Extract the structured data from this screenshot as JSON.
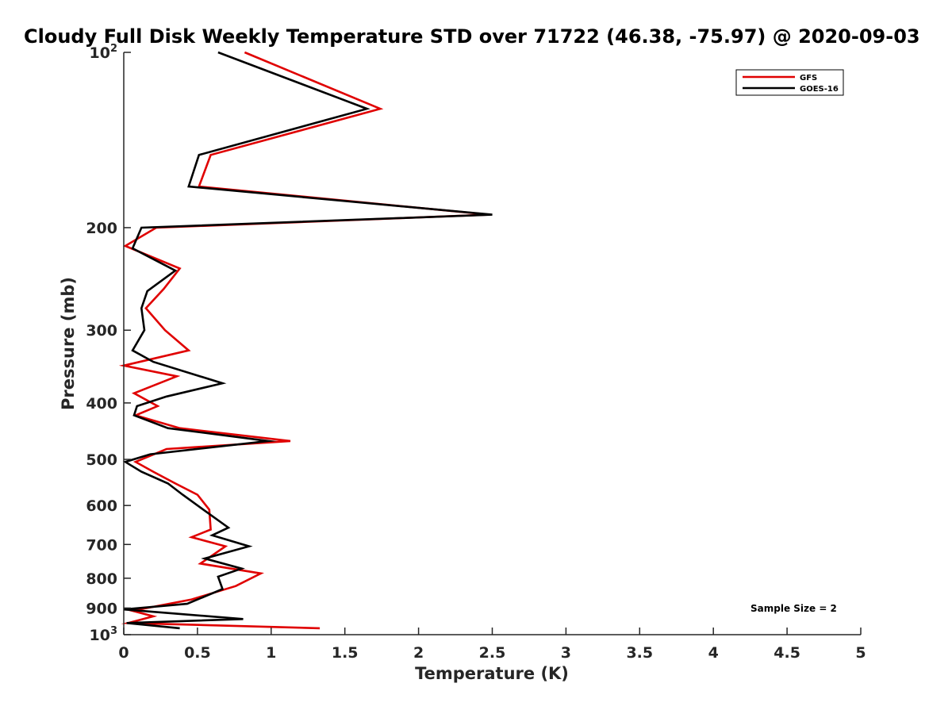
{
  "chart_data": {
    "type": "line",
    "title": "Cloudy Full Disk Weekly Temperature STD over 71722 (46.38, -75.97) @ 2020-09-03",
    "xlabel": "Temperature (K)",
    "ylabel": "Pressure (mb)",
    "xlim": [
      0,
      5
    ],
    "ylim": [
      100,
      1000
    ],
    "yscale": "log",
    "yreversed": true,
    "xticks": [
      "0",
      "0.5",
      "1",
      "1.5",
      "2",
      "2.5",
      "3",
      "3.5",
      "4",
      "4.5",
      "5"
    ],
    "xtick_values": [
      0,
      0.5,
      1,
      1.5,
      2,
      2.5,
      3,
      3.5,
      4,
      4.5,
      5
    ],
    "yticks": [
      {
        "value": 100,
        "label": "10",
        "sup": "2"
      },
      {
        "value": 200,
        "label": "200",
        "sup": ""
      },
      {
        "value": 300,
        "label": "300",
        "sup": ""
      },
      {
        "value": 400,
        "label": "400",
        "sup": ""
      },
      {
        "value": 500,
        "label": "500",
        "sup": ""
      },
      {
        "value": 600,
        "label": "600",
        "sup": ""
      },
      {
        "value": 700,
        "label": "700",
        "sup": ""
      },
      {
        "value": 800,
        "label": "800",
        "sup": ""
      },
      {
        "value": 900,
        "label": "900",
        "sup": ""
      },
      {
        "value": 1000,
        "label": "10",
        "sup": "3"
      }
    ],
    "legend_position": "top-right",
    "annotation": "Sample Size = 2",
    "series": [
      {
        "name": "GFS",
        "color": "#e00000",
        "points": [
          [
            0.82,
            100
          ],
          [
            1.74,
            125
          ],
          [
            0.59,
            150
          ],
          [
            0.51,
            170
          ],
          [
            2.48,
            190
          ],
          [
            0.22,
            200
          ],
          [
            0.01,
            215
          ],
          [
            0.38,
            235
          ],
          [
            0.27,
            255
          ],
          [
            0.15,
            275
          ],
          [
            0.28,
            300
          ],
          [
            0.44,
            325
          ],
          [
            0.0,
            345
          ],
          [
            0.36,
            360
          ],
          [
            0.07,
            385
          ],
          [
            0.23,
            405
          ],
          [
            0.08,
            420
          ],
          [
            0.38,
            442
          ],
          [
            1.13,
            465
          ],
          [
            0.29,
            480
          ],
          [
            0.08,
            505
          ],
          [
            0.2,
            525
          ],
          [
            0.35,
            550
          ],
          [
            0.5,
            575
          ],
          [
            0.58,
            610
          ],
          [
            0.59,
            660
          ],
          [
            0.46,
            680
          ],
          [
            0.69,
            705
          ],
          [
            0.52,
            755
          ],
          [
            0.93,
            785
          ],
          [
            0.76,
            825
          ],
          [
            0.46,
            870
          ],
          [
            0.06,
            910
          ],
          [
            0.2,
            930
          ],
          [
            0.03,
            955
          ],
          [
            1.33,
            975
          ]
        ]
      },
      {
        "name": "GOES-16",
        "color": "#000000",
        "points": [
          [
            0.64,
            100
          ],
          [
            1.65,
            125
          ],
          [
            0.51,
            150
          ],
          [
            0.44,
            170
          ],
          [
            2.5,
            190
          ],
          [
            0.12,
            200
          ],
          [
            0.06,
            217
          ],
          [
            0.35,
            237
          ],
          [
            0.16,
            257
          ],
          [
            0.12,
            275
          ],
          [
            0.14,
            300
          ],
          [
            0.06,
            325
          ],
          [
            0.2,
            340
          ],
          [
            0.67,
            370
          ],
          [
            0.29,
            390
          ],
          [
            0.09,
            405
          ],
          [
            0.07,
            420
          ],
          [
            0.3,
            442
          ],
          [
            0.98,
            465
          ],
          [
            0.18,
            490
          ],
          [
            0.01,
            505
          ],
          [
            0.12,
            525
          ],
          [
            0.3,
            550
          ],
          [
            0.4,
            575
          ],
          [
            0.54,
            610
          ],
          [
            0.71,
            655
          ],
          [
            0.6,
            675
          ],
          [
            0.85,
            705
          ],
          [
            0.55,
            740
          ],
          [
            0.8,
            770
          ],
          [
            0.64,
            795
          ],
          [
            0.67,
            835
          ],
          [
            0.43,
            885
          ],
          [
            0.0,
            905
          ],
          [
            0.81,
            940
          ],
          [
            0.02,
            955
          ],
          [
            0.38,
            975
          ]
        ]
      }
    ]
  }
}
